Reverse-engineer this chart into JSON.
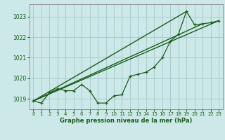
{
  "title": "Graphe pression niveau de la mer (hPa)",
  "bg_color": "#cce8e8",
  "grid_color": "#aacccc",
  "line_color": "#1a5c1a",
  "xlim": [
    -0.5,
    23.5
  ],
  "ylim": [
    1018.5,
    1023.6
  ],
  "yticks": [
    1019,
    1020,
    1021,
    1022,
    1023
  ],
  "xticks": [
    0,
    1,
    2,
    3,
    4,
    5,
    6,
    7,
    8,
    9,
    10,
    11,
    12,
    13,
    14,
    15,
    16,
    17,
    18,
    19,
    20,
    21,
    22,
    23
  ],
  "main_x": [
    0,
    1,
    2,
    3,
    4,
    5,
    6,
    7,
    8,
    9,
    10,
    11,
    12,
    13,
    14,
    15,
    16,
    17,
    18,
    19,
    20,
    21,
    22,
    23
  ],
  "main_y": [
    1018.9,
    1018.8,
    1019.3,
    1019.5,
    1019.4,
    1019.4,
    1019.7,
    1019.4,
    1018.8,
    1018.8,
    1019.15,
    1019.2,
    1020.1,
    1020.2,
    1020.3,
    1020.55,
    1021.0,
    1021.8,
    1022.15,
    1023.25,
    1022.6,
    1022.65,
    1022.7,
    1022.8
  ],
  "trend1_x": [
    0,
    23
  ],
  "trend1_y": [
    1018.9,
    1022.8
  ],
  "trend2_x": [
    0,
    19
  ],
  "trend2_y": [
    1018.9,
    1023.25
  ]
}
